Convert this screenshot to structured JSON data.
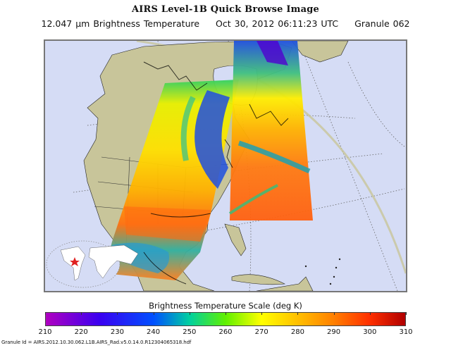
{
  "header": {
    "title": "AIRS Level-1B Quick Browse Image",
    "wavelength": "12.047 µm Brightness Temperature",
    "datetime": "Oct 30, 2012 06:11:23 UTC",
    "granule": "Granule 062"
  },
  "map": {
    "region": "North America / North Atlantic",
    "ocean_color": "#d5dcf5",
    "land_color": "#c8c59a",
    "inset": {
      "description": "World locator map",
      "marker": "red-star",
      "marker_color": "#e02020"
    },
    "swaths": [
      {
        "name": "west-swath",
        "covers": "Central US, Great Lakes, Gulf of Mexico, Mexico"
      },
      {
        "name": "east-swath",
        "covers": "Labrador, Nova Scotia, Western North Atlantic"
      }
    ]
  },
  "colorbar": {
    "title": "Brightness Temperature Scale (deg K)",
    "min": 210,
    "max": 310,
    "ticks": [
      "210",
      "220",
      "230",
      "240",
      "250",
      "260",
      "270",
      "280",
      "290",
      "300",
      "310"
    ],
    "stops": [
      {
        "value": 210,
        "color": "#b000c0"
      },
      {
        "value": 225,
        "color": "#3a00f0"
      },
      {
        "value": 240,
        "color": "#0050ff"
      },
      {
        "value": 250,
        "color": "#00d0a0"
      },
      {
        "value": 260,
        "color": "#60f000"
      },
      {
        "value": 270,
        "color": "#ffff00"
      },
      {
        "value": 280,
        "color": "#ffc000"
      },
      {
        "value": 290,
        "color": "#ff8000"
      },
      {
        "value": 300,
        "color": "#ff3000"
      },
      {
        "value": 310,
        "color": "#b00000"
      }
    ]
  },
  "footer": {
    "granule_id": "Granule Id = AIRS.2012.10.30.062.L1B.AIRS_Rad.v5.0.14.0.R12304065318.hdf"
  }
}
